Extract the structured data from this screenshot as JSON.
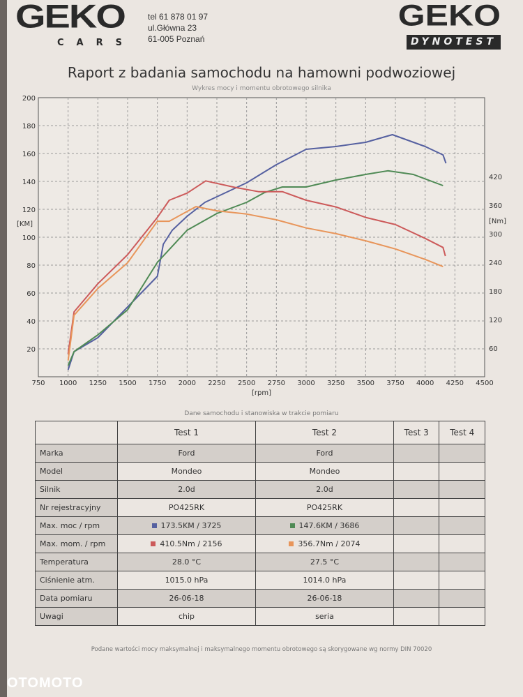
{
  "header": {
    "logo_left": "GEKO",
    "logo_left_sub": "CARS",
    "phone": "tel 61 878 01 97",
    "street": "ul.Główna 23",
    "city": "61-005 Poznań",
    "logo_right": "GEKO",
    "logo_right_sub": "DYNOTEST",
    "title": "Raport z badania samochodu na hamowni podwoziowej",
    "subtitle": "Wykres mocy i momentu obrotowego silnika"
  },
  "chart_data": {
    "type": "line",
    "title": "Wykres mocy i momentu obrotowego silnika",
    "xlabel": "[rpm]",
    "ylabel": "[KM]",
    "y2label": "[Nm]",
    "xlim": [
      750,
      4500
    ],
    "ylim": [
      0,
      200
    ],
    "y2lim": [
      0,
      585
    ],
    "xticks": [
      750,
      1000,
      1250,
      1500,
      1750,
      2000,
      2250,
      2500,
      2750,
      3000,
      3250,
      3500,
      3750,
      4000,
      4250,
      4500
    ],
    "yticks": [
      20,
      40,
      60,
      80,
      100,
      120,
      140,
      160,
      180,
      200
    ],
    "y2ticks": [
      60,
      120,
      180,
      240,
      300,
      360,
      420
    ],
    "series": [
      {
        "name": "Test 1 moc",
        "axis": "left",
        "color": "#5560a0",
        "x": [
          1000,
          1050,
          1250,
          1500,
          1750,
          1800,
          1875,
          2000,
          2150,
          2500,
          2750,
          3000,
          3250,
          3500,
          3725,
          4000,
          4150,
          4175
        ],
        "y": [
          5,
          18,
          28,
          50,
          72,
          95,
          105,
          115,
          125,
          139,
          152,
          163,
          165,
          168,
          173.5,
          165,
          159,
          153
        ]
      },
      {
        "name": "Test 2 moc",
        "axis": "left",
        "color": "#4f8a55",
        "x": [
          1000,
          1050,
          1250,
          1500,
          1750,
          2000,
          2250,
          2500,
          2650,
          2800,
          3000,
          3250,
          3500,
          3686,
          3900,
          4150
        ],
        "y": [
          8,
          18,
          30,
          48,
          82,
          105,
          117,
          125,
          132,
          136,
          136,
          141,
          145,
          147.6,
          145,
          137
        ]
      },
      {
        "name": "Test 1 moment",
        "axis": "right",
        "color": "#cc5a5a",
        "x": [
          1000,
          1050,
          1250,
          1500,
          1750,
          1850,
          2000,
          2156,
          2400,
          2600,
          2800,
          3000,
          3250,
          3500,
          3750,
          4000,
          4150,
          4170
        ],
        "y": [
          48,
          136,
          195,
          256,
          334,
          370,
          385,
          410.5,
          397,
          388,
          388,
          370,
          356,
          334,
          319,
          290,
          271,
          253
        ]
      },
      {
        "name": "Test 2 moment",
        "axis": "right",
        "color": "#e8955a",
        "x": [
          1000,
          1050,
          1250,
          1500,
          1750,
          1850,
          2074,
          2250,
          2500,
          2750,
          3000,
          3250,
          3500,
          3750,
          4000,
          4150
        ],
        "y": [
          34,
          129,
          185,
          239,
          326,
          326,
          356.7,
          348,
          341,
          329,
          312,
          300,
          285,
          268,
          246,
          231
        ]
      }
    ]
  },
  "table": {
    "caption": "Dane samochodu i stanowiska w trakcie pomiaru",
    "headers": [
      "",
      "Test 1",
      "Test 2",
      "Test 3",
      "Test 4"
    ],
    "rows": [
      {
        "label": "Marka",
        "t1": "Ford",
        "t2": "Ford"
      },
      {
        "label": "Model",
        "t1": "Mondeo",
        "t2": "Mondeo"
      },
      {
        "label": "Silnik",
        "t1": "2.0d",
        "t2": "2.0d"
      },
      {
        "label": "Nr rejestracyjny",
        "t1": "PO425RK",
        "t2": "PO425RK"
      },
      {
        "label": "Max. moc / rpm",
        "t1": "173.5KM / 3725",
        "t2": "147.6KM / 3686"
      },
      {
        "label": "Max. mom. / rpm",
        "t1": "410.5Nm / 2156",
        "t2": "356.7Nm / 2074"
      },
      {
        "label": "Temperatura",
        "t1": "28.0 °C",
        "t2": "27.5 °C"
      },
      {
        "label": "Ciśnienie atm.",
        "t1": "1015.0 hPa",
        "t2": "1014.0 hPa"
      },
      {
        "label": "Data pomiaru",
        "t1": "26-06-18",
        "t2": "26-06-18"
      },
      {
        "label": "Uwagi",
        "t1": "chip",
        "t2": "seria"
      }
    ]
  },
  "footer_note": "Podane wartości mocy maksymalnej i maksymalnego momentu obrotowego są skorygowane wg normy DIN 70020",
  "watermark": "OTOMOTO"
}
